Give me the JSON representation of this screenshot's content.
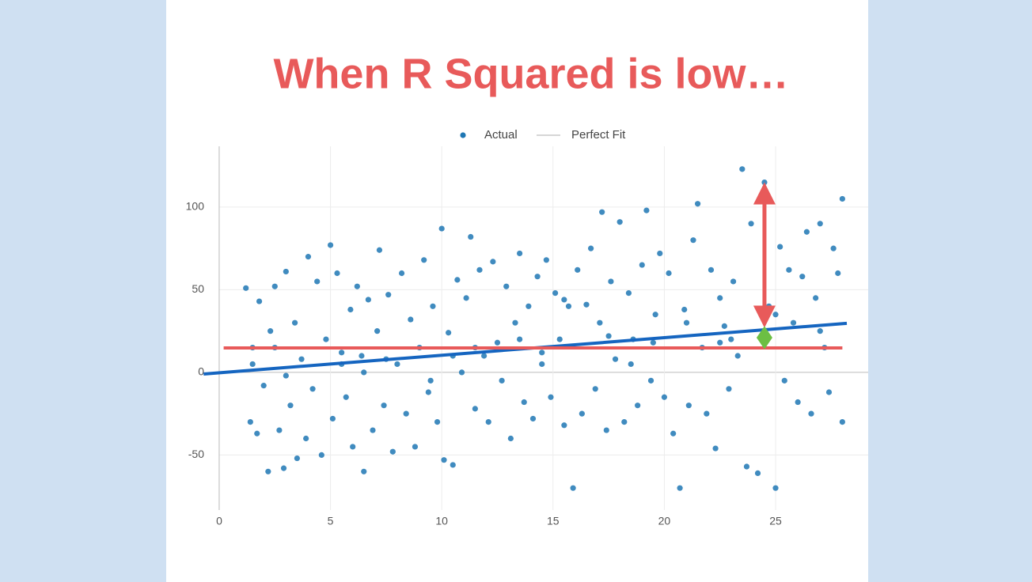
{
  "chart_data": {
    "type": "scatter",
    "title": "When R Squared is low…",
    "xlim": [
      -0.71,
      29.16
    ],
    "ylim": [
      -83.3,
      136.8
    ],
    "xticks": [
      0,
      5,
      10,
      15,
      20,
      25
    ],
    "yticks": [
      -50,
      0,
      50,
      100
    ],
    "grid": true,
    "series": [
      {
        "name": "Actual",
        "color": "#1f77b4",
        "x": [
          1.2,
          1.4,
          1.5,
          1.7,
          1.8,
          2.0,
          2.2,
          2.3,
          2.5,
          2.7,
          2.9,
          3.0,
          3.2,
          3.4,
          3.5,
          3.7,
          3.9,
          4.0,
          4.2,
          4.4,
          4.6,
          4.8,
          5.0,
          5.1,
          5.3,
          5.5,
          5.7,
          5.9,
          6.0,
          6.2,
          6.4,
          6.5,
          6.7,
          6.9,
          7.1,
          7.2,
          7.4,
          7.6,
          7.8,
          8.0,
          8.2,
          8.4,
          8.6,
          8.8,
          9.0,
          9.2,
          9.4,
          9.6,
          9.8,
          10.0,
          10.1,
          10.3,
          10.5,
          10.7,
          10.9,
          11.1,
          11.3,
          11.5,
          11.7,
          11.9,
          12.1,
          12.3,
          12.5,
          12.7,
          12.9,
          13.1,
          13.3,
          13.5,
          13.7,
          13.9,
          14.1,
          14.3,
          14.5,
          14.7,
          14.9,
          15.1,
          15.3,
          15.5,
          15.7,
          15.9,
          16.1,
          16.3,
          16.5,
          16.7,
          16.9,
          17.1,
          17.2,
          17.4,
          17.6,
          17.8,
          18.0,
          18.2,
          18.4,
          18.6,
          18.8,
          19.0,
          19.2,
          19.4,
          19.6,
          19.8,
          20.0,
          20.2,
          20.4,
          20.7,
          20.9,
          21.1,
          21.3,
          21.5,
          21.7,
          21.9,
          22.1,
          22.3,
          22.5,
          22.7,
          22.9,
          23.1,
          23.3,
          23.5,
          23.7,
          23.9,
          24.2,
          24.5,
          24.7,
          25.0,
          25.2,
          25.4,
          25.6,
          25.8,
          26.0,
          26.2,
          26.4,
          26.6,
          26.8,
          27.0,
          27.2,
          27.4,
          27.6,
          27.8,
          28.0,
          28.0,
          1.5,
          3.0,
          5.5,
          7.5,
          9.5,
          11.5,
          13.5,
          15.5,
          17.5,
          19.5,
          21.0,
          23.0,
          25.0,
          27.0,
          2.5,
          6.5,
          10.5,
          14.5,
          18.5,
          22.5
        ],
        "y": [
          51,
          -30,
          15,
          -37,
          43,
          -8,
          -60,
          25,
          52,
          -35,
          -58,
          61,
          -20,
          30,
          -52,
          8,
          -40,
          70,
          -10,
          55,
          -50,
          20,
          77,
          -28,
          60,
          5,
          -15,
          38,
          -45,
          52,
          10,
          -60,
          44,
          -35,
          25,
          74,
          -20,
          47,
          -48,
          5,
          60,
          -25,
          32,
          -45,
          15,
          68,
          -12,
          40,
          -30,
          87,
          -53,
          24,
          -56,
          56,
          0,
          45,
          82,
          -22,
          62,
          10,
          -30,
          67,
          18,
          -5,
          52,
          -40,
          30,
          72,
          -18,
          40,
          -28,
          58,
          5,
          68,
          -15,
          48,
          20,
          -32,
          40,
          -70,
          62,
          -25,
          41,
          75,
          -10,
          30,
          97,
          -35,
          55,
          8,
          91,
          -30,
          48,
          20,
          -20,
          65,
          98,
          -5,
          35,
          72,
          -15,
          60,
          -37,
          -70,
          38,
          -20,
          80,
          102,
          15,
          -25,
          62,
          -46,
          45,
          28,
          -10,
          55,
          10,
          123,
          -57,
          90,
          -61,
          115,
          40,
          -70,
          76,
          -5,
          62,
          30,
          -18,
          58,
          85,
          -25,
          45,
          90,
          15,
          -12,
          75,
          60,
          105,
          -30,
          5,
          -2,
          12,
          8,
          -5,
          15,
          20,
          44,
          22,
          18,
          30,
          20,
          35,
          25,
          15,
          0,
          10,
          12,
          5,
          18
        ]
      },
      {
        "name": "Perfect Fit",
        "color": "#d6d6d6"
      }
    ],
    "fit_line": {
      "x": [
        -0.7,
        28.2
      ],
      "y": [
        -1,
        29.7
      ],
      "color": "#1565c0"
    },
    "mean_line": {
      "x": [
        0.2,
        28.0
      ],
      "y": [
        14.8,
        14.8
      ],
      "color": "#e85a5a"
    },
    "arrows": [
      {
        "x": 24.5,
        "y": [
          115,
          27
        ],
        "color": "#e85a5a"
      },
      {
        "x": 24.5,
        "y": [
          28,
          14
        ],
        "color": "#6cbf43"
      }
    ]
  }
}
